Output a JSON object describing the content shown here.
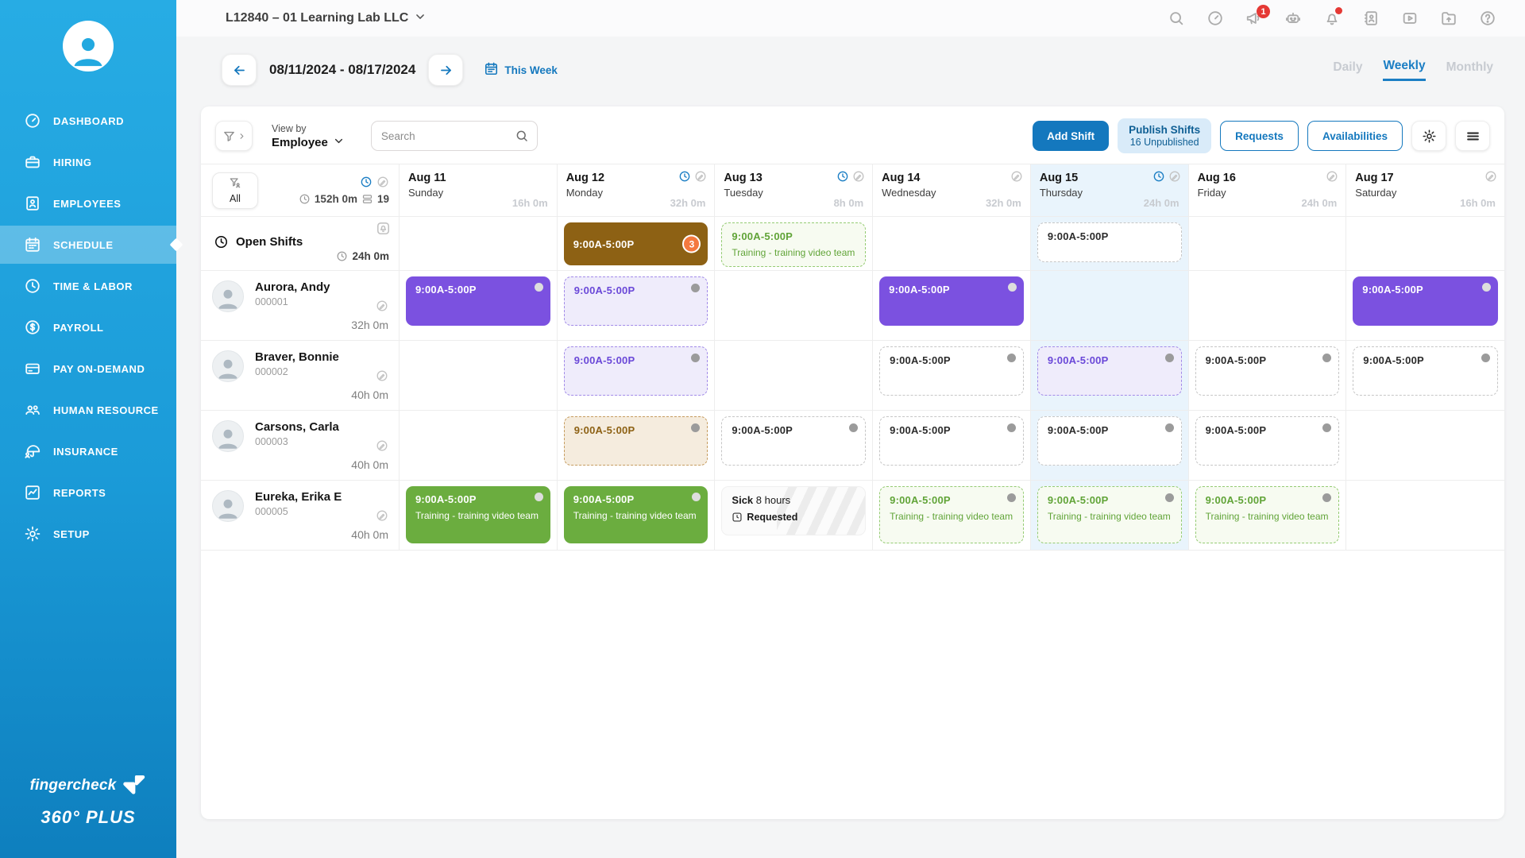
{
  "brand": {
    "logo_text": "fingercheck",
    "product": "360° PLUS"
  },
  "sidebar": {
    "active": "SCHEDULE",
    "items": [
      {
        "label": "DASHBOARD",
        "icon": "gauge"
      },
      {
        "label": "HIRING",
        "icon": "briefcase"
      },
      {
        "label": "EMPLOYEES",
        "icon": "idbook"
      },
      {
        "label": "SCHEDULE",
        "icon": "calendar"
      },
      {
        "label": "TIME & LABOR",
        "icon": "clock"
      },
      {
        "label": "PAYROLL",
        "icon": "dollar"
      },
      {
        "label": "PAY ON-DEMAND",
        "icon": "card"
      },
      {
        "label": "HUMAN RESOURCE",
        "icon": "people"
      },
      {
        "label": "INSURANCE",
        "icon": "umbrella"
      },
      {
        "label": "REPORTS",
        "icon": "chart"
      },
      {
        "label": "SETUP",
        "icon": "gear"
      }
    ]
  },
  "topbar": {
    "company": "L12840 – 01 Learning Lab LLC",
    "icons": [
      {
        "name": "search"
      },
      {
        "name": "gauge"
      },
      {
        "name": "megaphone",
        "badge": "1"
      },
      {
        "name": "robot"
      },
      {
        "name": "bell",
        "dot": true
      },
      {
        "name": "contacts"
      },
      {
        "name": "video"
      },
      {
        "name": "folder-upload"
      },
      {
        "name": "help"
      }
    ]
  },
  "date_nav": {
    "range": "08/11/2024 - 08/17/2024",
    "this_week": "This Week",
    "tabs": [
      "Daily",
      "Weekly",
      "Monthly"
    ],
    "active_tab": "Weekly"
  },
  "toolbar": {
    "view_by_label": "View by",
    "view_by_value": "Employee",
    "search_placeholder": "Search",
    "add_shift": "Add Shift",
    "publish_title": "Publish Shifts",
    "publish_sub": "16 Unpublished",
    "requests": "Requests",
    "availabilities": "Availabilities"
  },
  "grid": {
    "summary": {
      "all_label": "All",
      "total_hours": "152h 0m",
      "count": "19"
    },
    "days": [
      {
        "date": "Aug 11",
        "weekday": "Sunday",
        "hours": "16h 0m",
        "icons": []
      },
      {
        "date": "Aug 12",
        "weekday": "Monday",
        "hours": "32h 0m",
        "icons": [
          "clock",
          "pencil"
        ]
      },
      {
        "date": "Aug 13",
        "weekday": "Tuesday",
        "hours": "8h 0m",
        "icons": [
          "clock",
          "pencil"
        ]
      },
      {
        "date": "Aug 14",
        "weekday": "Wednesday",
        "hours": "32h 0m",
        "icons": [
          "pencil"
        ]
      },
      {
        "date": "Aug 15",
        "weekday": "Thursday",
        "hours": "24h 0m",
        "icons": [
          "clock",
          "pencil"
        ],
        "today": true
      },
      {
        "date": "Aug 16",
        "weekday": "Friday",
        "hours": "24h 0m",
        "icons": [
          "pencil"
        ]
      },
      {
        "date": "Aug 17",
        "weekday": "Saturday",
        "hours": "16h 0m",
        "icons": [
          "pencil"
        ]
      }
    ],
    "open_row": {
      "label": "Open Shifts",
      "hours": "24h 0m",
      "cells": [
        null,
        {
          "style": "solid-brown",
          "time": "9:00A-5:00P",
          "badge": "3"
        },
        {
          "style": "dashed-green",
          "time": "9:00A-5:00P",
          "label": "Training - training video team"
        },
        null,
        {
          "style": "dashed-grey",
          "time": "9:00A-5:00P"
        },
        null,
        null
      ]
    },
    "employee_rows": [
      {
        "name": "Aurora, Andy",
        "id": "000001",
        "hours": "32h 0m",
        "cells": [
          {
            "style": "solid-purple",
            "time": "9:00A-5:00P",
            "dot": true
          },
          {
            "style": "dashed-purple",
            "time": "9:00A-5:00P",
            "dot": true
          },
          null,
          {
            "style": "solid-purple",
            "time": "9:00A-5:00P",
            "dot": true
          },
          null,
          null,
          {
            "style": "solid-purple",
            "time": "9:00A-5:00P",
            "dot": true
          }
        ]
      },
      {
        "name": "Braver, Bonnie",
        "id": "000002",
        "hours": "40h 0m",
        "cells": [
          null,
          {
            "style": "dashed-purple",
            "time": "9:00A-5:00P",
            "dot": true
          },
          null,
          {
            "style": "dashed-grey",
            "time": "9:00A-5:00P",
            "dot": true
          },
          {
            "style": "dashed-purple",
            "time": "9:00A-5:00P",
            "dot": true
          },
          {
            "style": "dashed-grey",
            "time": "9:00A-5:00P",
            "dot": true
          },
          {
            "style": "dashed-grey",
            "time": "9:00A-5:00P",
            "dot": true
          }
        ]
      },
      {
        "name": "Carsons, Carla",
        "id": "000003",
        "hours": "40h 0m",
        "cells": [
          null,
          {
            "style": "dashed-tan",
            "time": "9:00A-5:00P",
            "dot": true
          },
          {
            "style": "dashed-grey",
            "time": "9:00A-5:00P",
            "dot": true
          },
          {
            "style": "dashed-grey",
            "time": "9:00A-5:00P",
            "dot": true
          },
          {
            "style": "dashed-grey",
            "time": "9:00A-5:00P",
            "dot": true
          },
          {
            "style": "dashed-grey",
            "time": "9:00A-5:00P",
            "dot": true
          },
          null
        ]
      },
      {
        "name": "Eureka, Erika E",
        "id": "000005",
        "hours": "40h 0m",
        "cells": [
          {
            "style": "solid-green",
            "time": "9:00A-5:00P",
            "label": "Training - training video team",
            "dot": true
          },
          {
            "style": "solid-green",
            "time": "9:00A-5:00P",
            "label": "Training - training video team",
            "dot": true
          },
          {
            "style": "sick",
            "sick_label": "Sick",
            "sick_hours": "8 hours",
            "status": "Requested"
          },
          {
            "style": "dashed-green",
            "time": "9:00A-5:00P",
            "label": "Training - training video team",
            "dot": true
          },
          {
            "style": "dashed-green",
            "time": "9:00A-5:00P",
            "label": "Training - training video team",
            "dot": true
          },
          {
            "style": "dashed-green",
            "time": "9:00A-5:00P",
            "label": "Training - training video team",
            "dot": true
          },
          null
        ]
      }
    ]
  },
  "colors": {
    "accent": "#1478BE",
    "sidebar-top": "#27ACE4",
    "sidebar-bottom": "#0E7FBE",
    "purple": "#7B51E0",
    "green": "#6BAD3F",
    "brown": "#8D6114",
    "badge-orange": "#F4793F",
    "today-bg": "#E9F4FC"
  }
}
